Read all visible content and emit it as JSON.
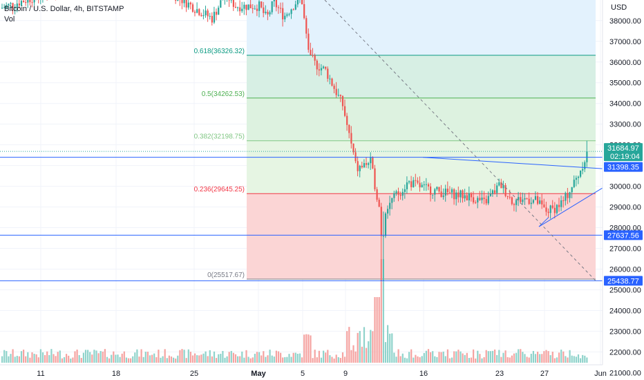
{
  "header": {
    "symbol_line": "Bitcoin / U.S. Dollar, 4h, BITSTAMP",
    "volume_label": "Vol"
  },
  "price_axis": {
    "currency_label": "USD",
    "ticks": [
      "38000.00",
      "37000.00",
      "36000.00",
      "35000.00",
      "34000.00",
      "33000.00",
      "32000.00",
      "31000.00",
      "30000.00",
      "29000.00",
      "28000.00",
      "27000.00",
      "26000.00",
      "25000.00",
      "24000.00",
      "23000.00",
      "22000.00",
      "21000.00"
    ]
  },
  "time_axis": {
    "ticks": [
      "11",
      "18",
      "25",
      "May",
      "5",
      "9",
      "16",
      "23",
      "27",
      "Jun"
    ]
  },
  "price_tags": {
    "current_price": "31684.97",
    "countdown": "02:19:04",
    "level_1": "31398.35",
    "level_2": "27637.56",
    "level_3": "25438.77"
  },
  "fib_levels": [
    {
      "label": "0.618(36326.32)",
      "price": 36326.32,
      "color": "#089981"
    },
    {
      "label": "0.5(34262.53)",
      "price": 34262.53,
      "color": "#4caf50"
    },
    {
      "label": "0.382(32198.75)",
      "price": 32198.75,
      "color": "#81c784"
    },
    {
      "label": "0.236(29645.25)",
      "price": 29645.25,
      "color": "#f23645"
    },
    {
      "label": "0(25517.67)",
      "price": 25517.67,
      "color": "#787b86"
    }
  ],
  "colors": {
    "up": "#26a69a",
    "down": "#ef5350",
    "volume_up": "#8fd3cb",
    "volume_down": "#f5a3a1",
    "horizontal_line": "#2962ff",
    "trend_line": "#2962ff",
    "current_tag": "#26a69a",
    "level_tag": "#2962ff"
  },
  "chart_data": {
    "type": "candlestick",
    "timeframe": "4h",
    "y_range": [
      20500,
      39500
    ],
    "horizontal_levels": [
      31398.35,
      27637.56,
      25438.77
    ],
    "current_price": 31684.97,
    "close_path": [
      {
        "date": "Apr 7",
        "close": 38600
      },
      {
        "date": "Apr 12",
        "close": 39600
      },
      {
        "date": "Apr 19",
        "close": 39900
      },
      {
        "date": "Apr 23",
        "close": 39500
      },
      {
        "date": "Apr 25",
        "close": 38600
      },
      {
        "date": "Apr 26",
        "close": 38100
      },
      {
        "date": "Apr 28",
        "close": 39300
      },
      {
        "date": "Apr 29",
        "close": 38700
      },
      {
        "date": "May 1",
        "close": 38700
      },
      {
        "date": "May 2",
        "close": 38100
      },
      {
        "date": "May 3",
        "close": 38900
      },
      {
        "date": "May 4",
        "close": 38200
      },
      {
        "date": "May 5",
        "close": 39200
      },
      {
        "date": "May 6",
        "close": 36400
      },
      {
        "date": "May 7",
        "close": 35900
      },
      {
        "date": "May 8",
        "close": 35600
      },
      {
        "date": "May 9",
        "close": 33900
      },
      {
        "date": "May 10",
        "close": 30800
      },
      {
        "date": "May 11",
        "close": 31200
      },
      {
        "date": "May 12",
        "close": 28600
      },
      {
        "date": "May 13",
        "close": 29300
      },
      {
        "date": "May 14",
        "close": 30200
      },
      {
        "date": "May 16",
        "close": 29900
      },
      {
        "date": "May 17",
        "close": 29700
      },
      {
        "date": "May 19",
        "close": 29500
      },
      {
        "date": "May 21",
        "close": 29200
      },
      {
        "date": "May 23",
        "close": 30100
      },
      {
        "date": "May 24",
        "close": 29300
      },
      {
        "date": "May 25",
        "close": 29400
      },
      {
        "date": "May 26",
        "close": 29300
      },
      {
        "date": "May 27",
        "close": 28800
      },
      {
        "date": "May 28",
        "close": 28900
      },
      {
        "date": "May 29",
        "close": 29300
      },
      {
        "date": "May 30",
        "close": 30500
      },
      {
        "date": "May 31",
        "close": 31685
      }
    ],
    "volume_peak_date": "May 12"
  }
}
